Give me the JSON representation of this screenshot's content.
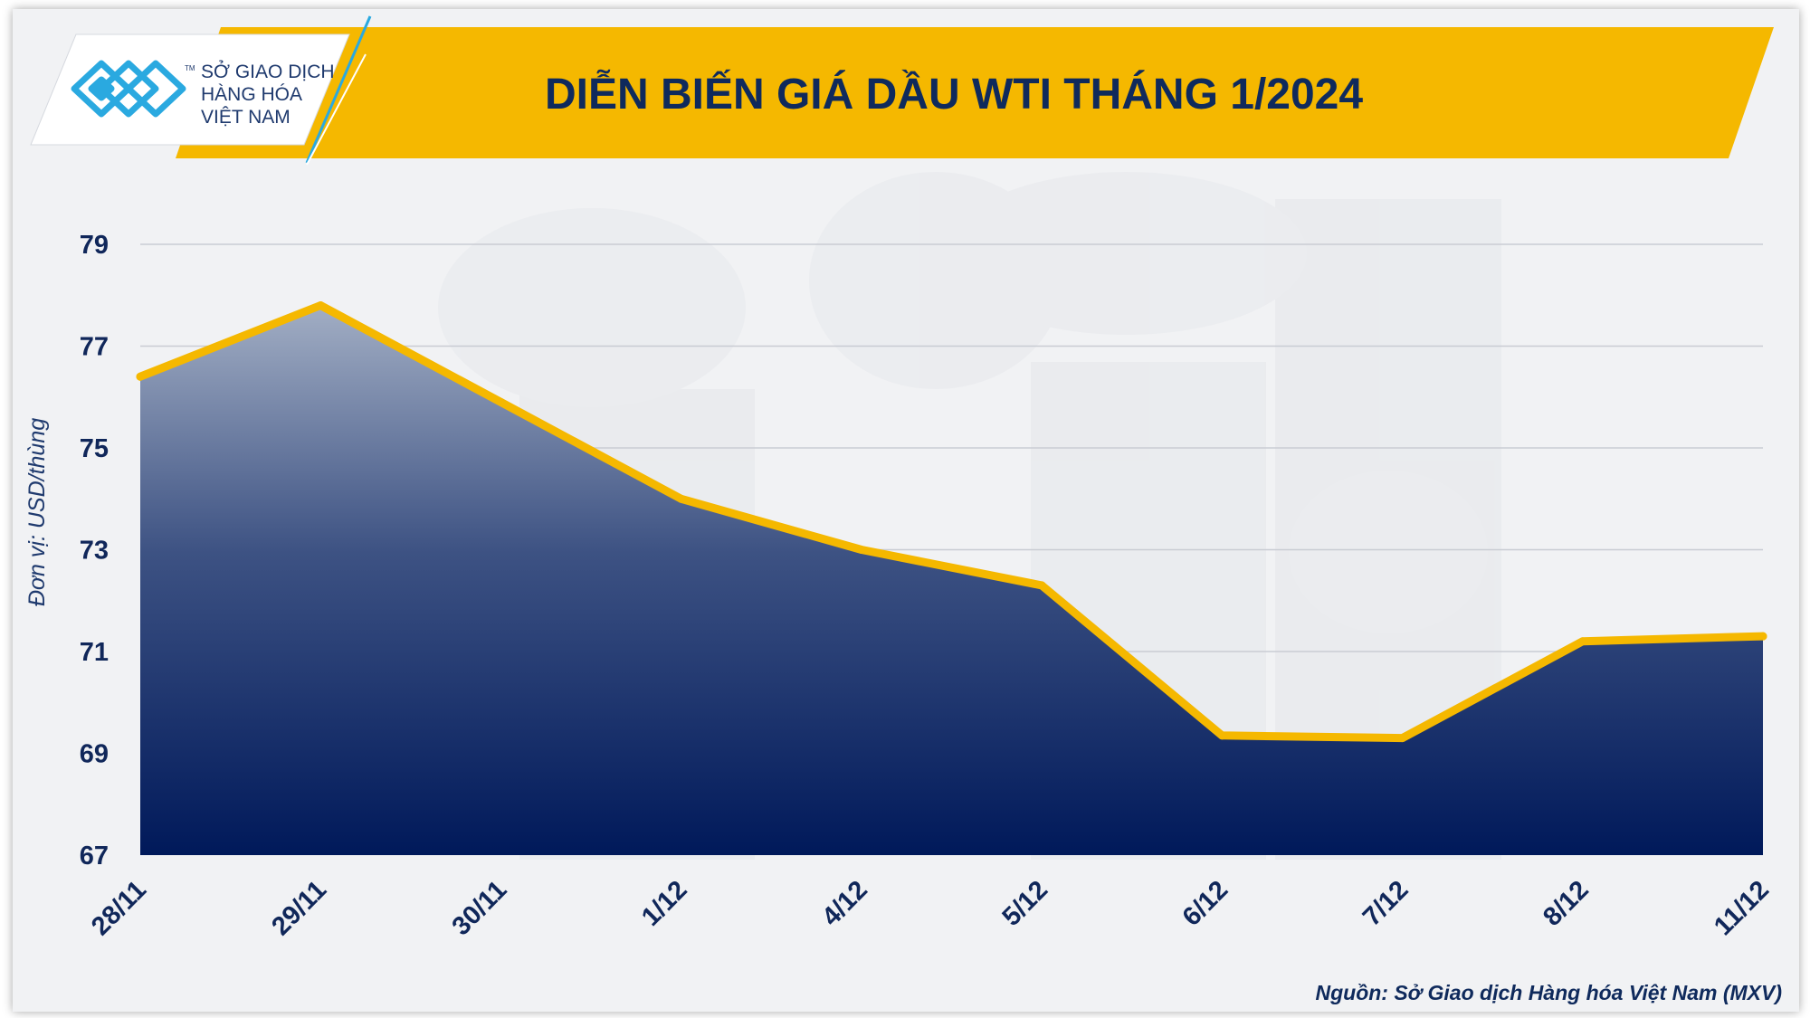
{
  "header": {
    "title": "DIỄN BIẾN GIÁ DẦU WTI THÁNG 1/2024",
    "logo_line1": "SỞ GIAO DỊCH",
    "logo_line2": "HÀNG HÓA",
    "logo_line3": "VIỆT NAM",
    "logo_tm": "TM"
  },
  "colors": {
    "banner": "#f5b800",
    "line": "#f5b800",
    "area_top": "#a2aec4",
    "area_bottom": "#00195a",
    "text": "#10275a"
  },
  "chart_data": {
    "type": "area",
    "title": "DIỄN BIẾN GIÁ DẦU WTI THÁNG 1/2024",
    "ylabel": "Đơn vị: USD/thùng",
    "xlabel": "",
    "categories": [
      "28/11",
      "29/11",
      "30/11",
      "1/12",
      "4/12",
      "5/12",
      "6/12",
      "7/12",
      "8/12",
      "11/12"
    ],
    "values": [
      76.4,
      77.8,
      75.9,
      74.0,
      73.0,
      72.3,
      69.35,
      69.3,
      71.2,
      71.3
    ],
    "ylim": [
      67,
      79
    ],
    "yticks": [
      67,
      69,
      71,
      73,
      75,
      77,
      79
    ],
    "grid": true,
    "legend": "none"
  },
  "footer": {
    "source": "Nguồn: Sở Giao dịch Hàng hóa Việt Nam (MXV)"
  }
}
